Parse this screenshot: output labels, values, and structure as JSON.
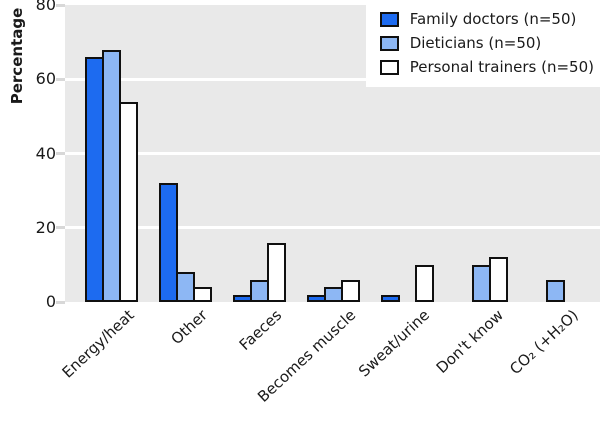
{
  "y_axis": {
    "label": "Percentage"
  },
  "chart_data": {
    "type": "bar",
    "title": "",
    "xlabel": "",
    "ylabel": "Percentage",
    "ylim": [
      0,
      80
    ],
    "yticks": [
      0,
      20,
      40,
      60,
      80
    ],
    "grid": true,
    "gridline_color": "#ffffff",
    "panel_bg": "#e9e9e9",
    "bar_outline": "#101010",
    "legend_position": "top-right",
    "legend_bg": "#ffffff",
    "categories": [
      "Energy/heat",
      "Other",
      "Faeces",
      "Becomes muscle",
      "Sweat/urine",
      "Don't know",
      "CO₂ (+H₂O)"
    ],
    "series": [
      {
        "name": "Family doctors (n=50)",
        "color": "#1d6bf0",
        "values": [
          66,
          32,
          2,
          2,
          2,
          0,
          0
        ]
      },
      {
        "name": "Dieticians (n=50)",
        "color": "#8db7f4",
        "values": [
          68,
          8,
          6,
          4,
          0,
          10,
          6
        ]
      },
      {
        "name": "Personal trainers (n=50)",
        "color": "#ffffff",
        "values": [
          54,
          4,
          16,
          6,
          10,
          12,
          0
        ]
      }
    ]
  }
}
